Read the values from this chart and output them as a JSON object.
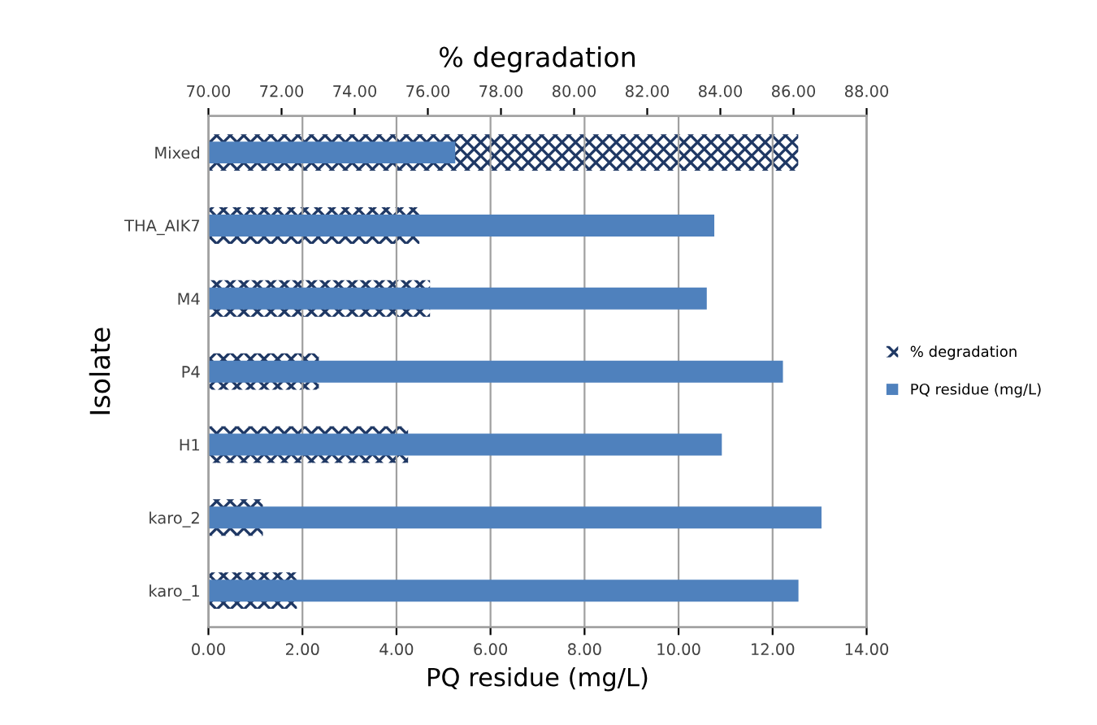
{
  "chart_data": {
    "type": "bar",
    "orientation": "horizontal",
    "xlabel": "PQ residue (mg/L)",
    "x2label": "% degradation",
    "ylabel": "Isolate",
    "categories": [
      "Mixed",
      "THA_AIK7",
      "M4",
      "P4",
      "H1",
      "karo_2",
      "karo_1"
    ],
    "series": [
      {
        "name": "% degradation",
        "color": "#1f3864",
        "axis": "x2",
        "values": [
          86.13,
          75.77,
          76.06,
          73.02,
          75.46,
          71.49,
          72.42
        ]
      },
      {
        "name": "PQ residue (mg/L)",
        "color": "#4f81bd",
        "values": [
          5.25,
          10.76,
          10.6,
          12.22,
          10.92,
          13.04,
          12.55
        ]
      }
    ],
    "xlim": [
      0,
      14
    ],
    "xticks": [
      {
        "value": 0,
        "label": "0.00"
      },
      {
        "value": 2,
        "label": "2.00"
      },
      {
        "value": 4,
        "label": "4.00"
      },
      {
        "value": 6,
        "label": "6.00"
      },
      {
        "value": 8,
        "label": "8.00"
      },
      {
        "value": 10,
        "label": "10.00"
      },
      {
        "value": 12,
        "label": "12.00"
      },
      {
        "value": 14,
        "label": "14.00"
      }
    ],
    "x2lim": [
      70,
      88
    ],
    "x2ticks": [
      {
        "value": 70,
        "label": "70.00"
      },
      {
        "value": 72,
        "label": "72.00"
      },
      {
        "value": 74,
        "label": "74.00"
      },
      {
        "value": 76,
        "label": "76.00"
      },
      {
        "value": 78,
        "label": "78.00"
      },
      {
        "value": 80,
        "label": "80.00"
      },
      {
        "value": 82,
        "label": "82.00"
      },
      {
        "value": 84,
        "label": "84.00"
      },
      {
        "value": 86,
        "label": "86.00"
      },
      {
        "value": 88,
        "label": "88.00"
      }
    ],
    "grid": "x",
    "legend": "right"
  }
}
